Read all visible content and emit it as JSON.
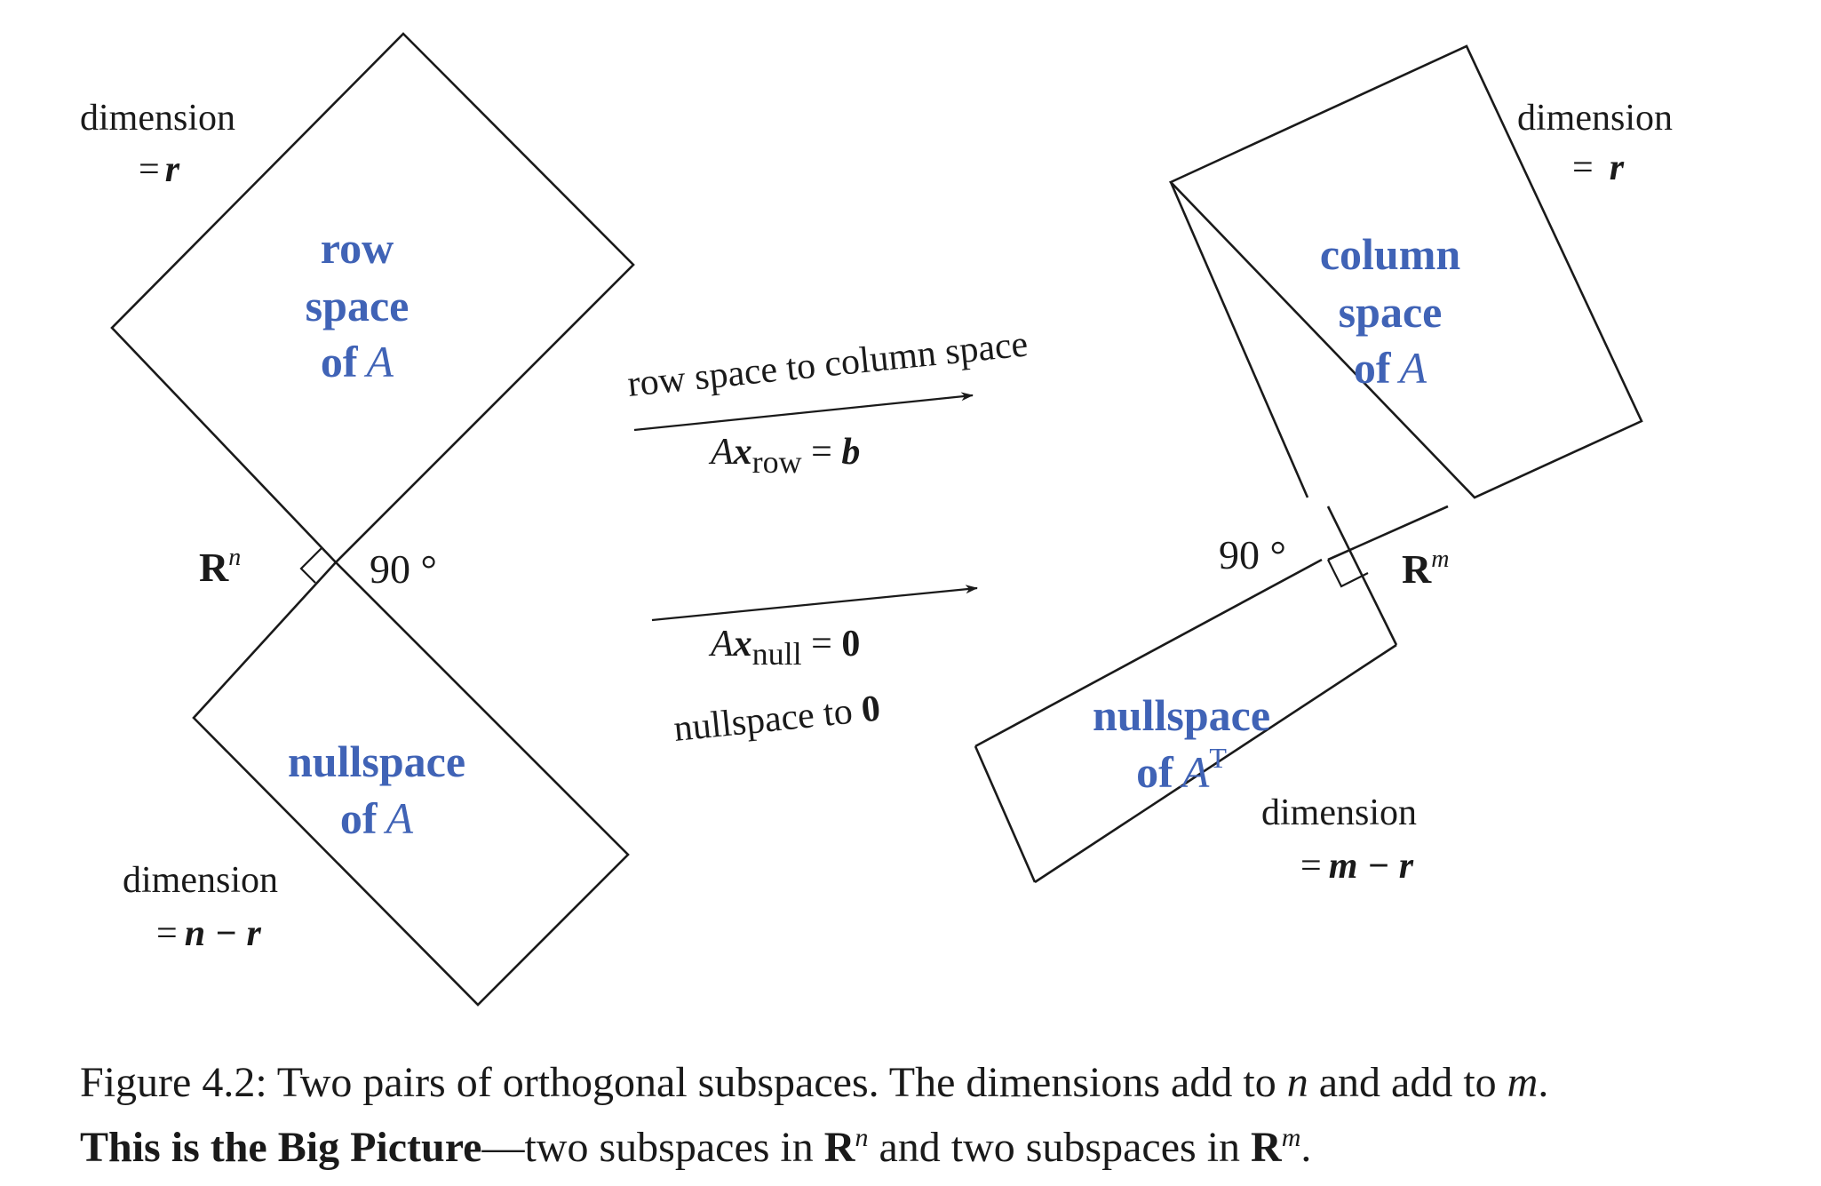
{
  "left": {
    "row_space": {
      "line1": "row",
      "line2": "space",
      "line3_prefix": "of",
      "line3_var": "A"
    },
    "nullspace": {
      "line1": "nullspace",
      "line2_prefix": "of",
      "line2_var": "A"
    },
    "dim_top": {
      "word": "dimension",
      "eq": "=",
      "var": "r"
    },
    "dim_bottom": {
      "word": "dimension",
      "eq": "=",
      "expr": "n − r"
    },
    "space_label": {
      "base": "R",
      "sup": "n"
    },
    "angle": "90 °"
  },
  "right": {
    "column_space": {
      "line1": "column",
      "line2": "space",
      "line3_prefix": "of",
      "line3_var": "A"
    },
    "left_nullspace": {
      "line1": "nullspace",
      "line2_prefix": "of",
      "line2_var": "A",
      "line2_sup": "T"
    },
    "dim_top": {
      "word": "dimension",
      "eq": "=",
      "var": "r"
    },
    "dim_bottom": {
      "word": "dimension",
      "eq": "=",
      "expr": "m − r"
    },
    "space_label": {
      "base": "R",
      "sup": "m"
    },
    "angle": "90 °"
  },
  "arrows": {
    "top": {
      "caption": "row space to column space",
      "eq_A": "A",
      "eq_x": "x",
      "eq_sub": "row",
      "eq_rest": " = ",
      "eq_rhs": "b"
    },
    "bottom": {
      "caption_text": "nullspace to ",
      "caption_zero": "0",
      "eq_A": "A",
      "eq_x": "x",
      "eq_sub": "null",
      "eq_rest": " = ",
      "eq_rhs": "0"
    }
  },
  "caption": {
    "line1_a": "Figure 4.2: Two pairs of orthogonal subspaces.  The dimensions add to ",
    "line1_n": "n",
    "line1_b": " and add to ",
    "line1_m": "m",
    "line1_c": ".",
    "line2_bold": "This is the Big Picture",
    "line2_a": "—two subspaces in ",
    "line2_R1": "R",
    "line2_sup1": "n",
    "line2_b": " and two subspaces in ",
    "line2_R2": "R",
    "line2_sup2": "m",
    "line2_c": "."
  }
}
